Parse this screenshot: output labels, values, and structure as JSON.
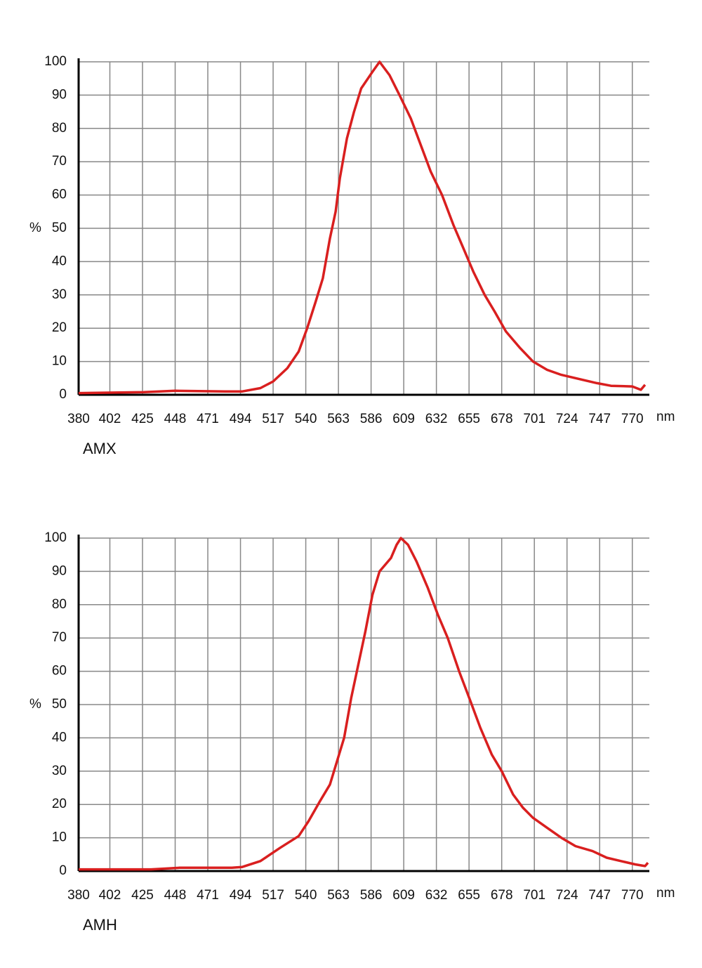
{
  "chart_data": [
    {
      "type": "line",
      "caption": "AMX",
      "ylabel": "%",
      "xlabel": "nm",
      "color": "#d91f1f",
      "grid": true,
      "xlim": [
        380,
        782
      ],
      "ylim": [
        0,
        100
      ],
      "xticks": [
        380,
        402,
        425,
        448,
        471,
        494,
        517,
        540,
        563,
        586,
        609,
        632,
        655,
        678,
        701,
        724,
        747,
        770
      ],
      "yticks": [
        0,
        10,
        20,
        30,
        40,
        50,
        60,
        70,
        80,
        90,
        100
      ],
      "x": [
        380,
        426,
        448,
        483,
        495,
        508,
        517,
        527,
        535,
        541,
        547,
        552,
        557,
        561,
        564,
        569,
        574,
        579,
        587,
        592,
        599,
        606,
        614,
        621,
        628,
        636,
        644,
        651,
        658,
        666,
        673,
        681,
        691,
        700,
        710,
        720,
        735,
        745,
        755,
        770,
        776,
        779
      ],
      "values": [
        0.5,
        0.8,
        1.2,
        1,
        1,
        2,
        4,
        8,
        13,
        20,
        28,
        35,
        47,
        55,
        65,
        77,
        85,
        92,
        97,
        100,
        96,
        90,
        83,
        75,
        67,
        60,
        51,
        44,
        37,
        30,
        25,
        19,
        14,
        10,
        7.5,
        6,
        4.5,
        3.5,
        2.7,
        2.5,
        1.5,
        3
      ]
    },
    {
      "type": "line",
      "caption": "AMH",
      "ylabel": "%",
      "xlabel": "nm",
      "color": "#d91f1f",
      "grid": true,
      "xlim": [
        380,
        782
      ],
      "ylim": [
        0,
        100
      ],
      "xticks": [
        380,
        402,
        425,
        448,
        471,
        494,
        517,
        540,
        563,
        586,
        609,
        632,
        655,
        678,
        701,
        724,
        747,
        770
      ],
      "yticks": [
        0,
        10,
        20,
        30,
        40,
        50,
        60,
        70,
        80,
        90,
        100
      ],
      "x": [
        380,
        431,
        451,
        488,
        495,
        508,
        522,
        535,
        542,
        550,
        557,
        562,
        567,
        572,
        577,
        582,
        587,
        592,
        600,
        604,
        607,
        612,
        618,
        626,
        633,
        640,
        648,
        656,
        663,
        671,
        678,
        686,
        693,
        700,
        710,
        720,
        730,
        742,
        752,
        762,
        772,
        779,
        781
      ],
      "values": [
        0.5,
        0.5,
        1,
        1,
        1.2,
        3,
        7,
        10.5,
        15,
        21,
        26,
        33,
        40,
        52,
        62,
        72,
        83,
        90,
        94,
        98,
        100,
        98,
        93,
        85,
        77,
        70,
        60,
        51,
        43,
        35,
        30,
        23,
        19,
        16,
        13,
        10,
        7.5,
        6,
        4,
        3,
        2,
        1.5,
        2.5
      ]
    }
  ]
}
